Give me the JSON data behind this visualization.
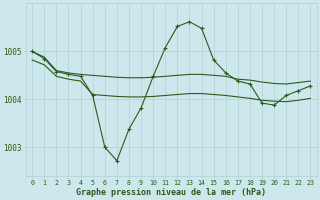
{
  "bg_color": "#cce8ec",
  "line_color": "#2d5a1b",
  "grid_color": "#b0d0d4",
  "title": "Graphe pression niveau de la mer (hPa)",
  "ylim": [
    1002.4,
    1006.0
  ],
  "yticks": [
    1003,
    1004,
    1005
  ],
  "xlim": [
    -0.5,
    23.5
  ],
  "xticks": [
    0,
    1,
    2,
    3,
    4,
    5,
    6,
    7,
    8,
    9,
    10,
    11,
    12,
    13,
    14,
    15,
    16,
    17,
    18,
    19,
    20,
    21,
    22,
    23
  ],
  "series_marker": {
    "x": [
      0,
      1,
      2,
      3,
      4,
      5,
      6,
      7,
      8,
      9,
      10,
      11,
      12,
      13,
      14,
      15,
      16,
      17,
      18,
      19,
      20,
      21,
      22,
      23
    ],
    "y": [
      1005.0,
      1004.85,
      1004.58,
      1004.52,
      1004.48,
      1004.08,
      1003.0,
      1002.72,
      1003.38,
      1003.82,
      1004.48,
      1005.08,
      1005.52,
      1005.62,
      1005.48,
      1004.82,
      1004.55,
      1004.38,
      1004.32,
      1003.92,
      1003.88,
      1004.08,
      1004.18,
      1004.28
    ]
  },
  "series_upper": {
    "x": [
      0,
      1,
      2,
      3,
      4,
      5,
      6,
      7,
      8,
      9,
      10,
      11,
      12,
      13,
      14,
      15,
      16,
      17,
      18,
      19,
      20,
      21,
      22,
      23
    ],
    "y": [
      1005.0,
      1004.88,
      1004.6,
      1004.55,
      1004.52,
      1004.5,
      1004.48,
      1004.46,
      1004.45,
      1004.45,
      1004.46,
      1004.48,
      1004.5,
      1004.52,
      1004.52,
      1004.5,
      1004.48,
      1004.42,
      1004.4,
      1004.36,
      1004.33,
      1004.32,
      1004.35,
      1004.38
    ]
  },
  "series_lower": {
    "x": [
      0,
      1,
      2,
      3,
      4,
      5,
      6,
      7,
      8,
      9,
      10,
      11,
      12,
      13,
      14,
      15,
      16,
      17,
      18,
      19,
      20,
      21,
      22,
      23
    ],
    "y": [
      1004.82,
      1004.72,
      1004.48,
      1004.42,
      1004.38,
      1004.1,
      1004.08,
      1004.06,
      1004.05,
      1004.05,
      1004.06,
      1004.08,
      1004.1,
      1004.12,
      1004.12,
      1004.1,
      1004.08,
      1004.05,
      1004.02,
      1003.98,
      1003.96,
      1003.95,
      1003.98,
      1004.02
    ]
  }
}
